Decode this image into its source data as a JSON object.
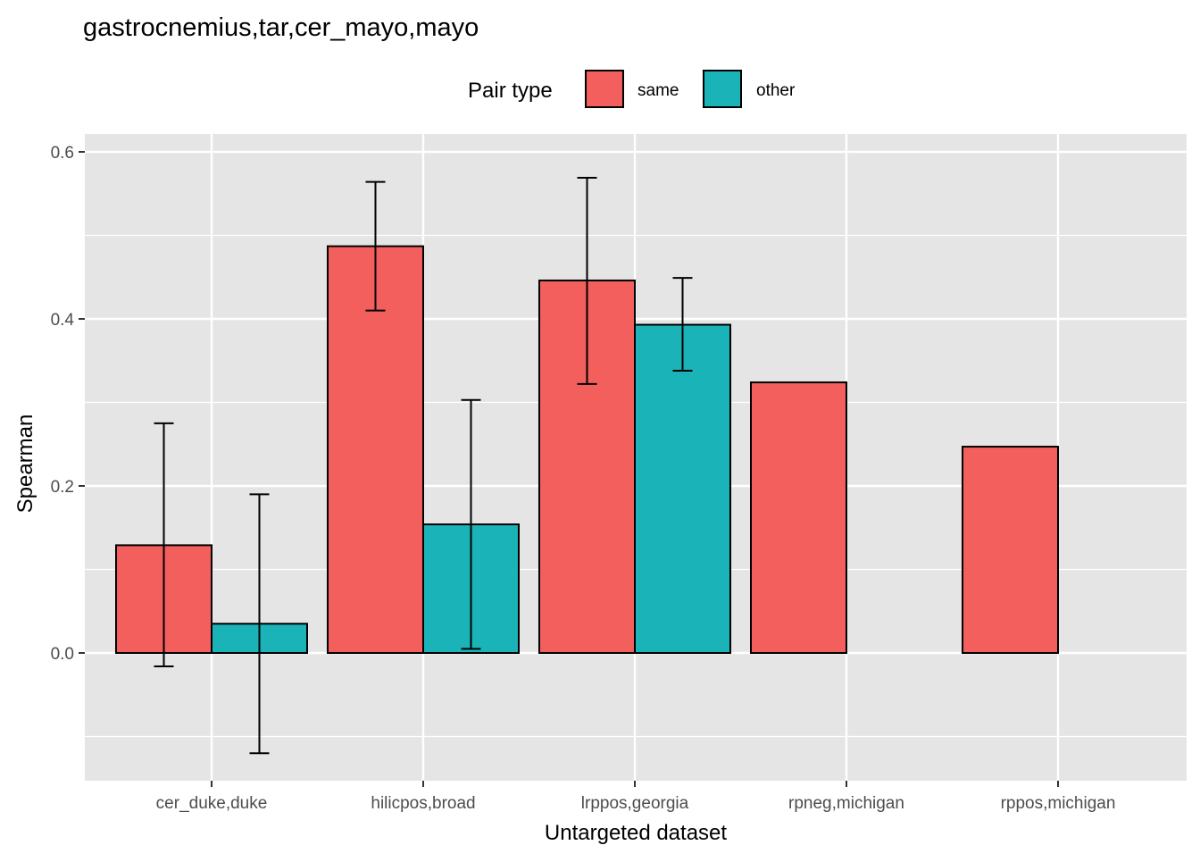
{
  "chart_data": {
    "type": "bar",
    "title": "gastrocnemius,tar,cer_mayo,mayo",
    "xlabel": "Untargeted dataset",
    "ylabel": "Spearman",
    "ylim": [
      -0.15,
      0.6
    ],
    "yticks": [
      0.0,
      0.2,
      0.4,
      0.6
    ],
    "ytick_labels": [
      "0.0",
      "0.2",
      "0.4",
      "0.6"
    ],
    "grid": true,
    "legend": {
      "title": "Pair type",
      "position": "top"
    },
    "categories": [
      "cer_duke,duke",
      "hilicpos,broad",
      "lrppos,georgia",
      "rpneg,michigan",
      "rppos,michigan"
    ],
    "series": [
      {
        "name": "same",
        "color": "#F25F5C",
        "values": [
          0.129,
          0.487,
          0.446,
          0.324,
          0.247
        ],
        "err_low": [
          -0.016,
          0.41,
          0.322,
          null,
          null
        ],
        "err_high": [
          0.275,
          0.564,
          0.569,
          null,
          null
        ]
      },
      {
        "name": "other",
        "color": "#1AB3B8",
        "values": [
          0.035,
          0.154,
          0.393,
          null,
          null
        ],
        "err_low": [
          -0.12,
          0.005,
          0.338,
          null,
          null
        ],
        "err_high": [
          0.19,
          0.303,
          0.449,
          null,
          null
        ]
      }
    ]
  }
}
